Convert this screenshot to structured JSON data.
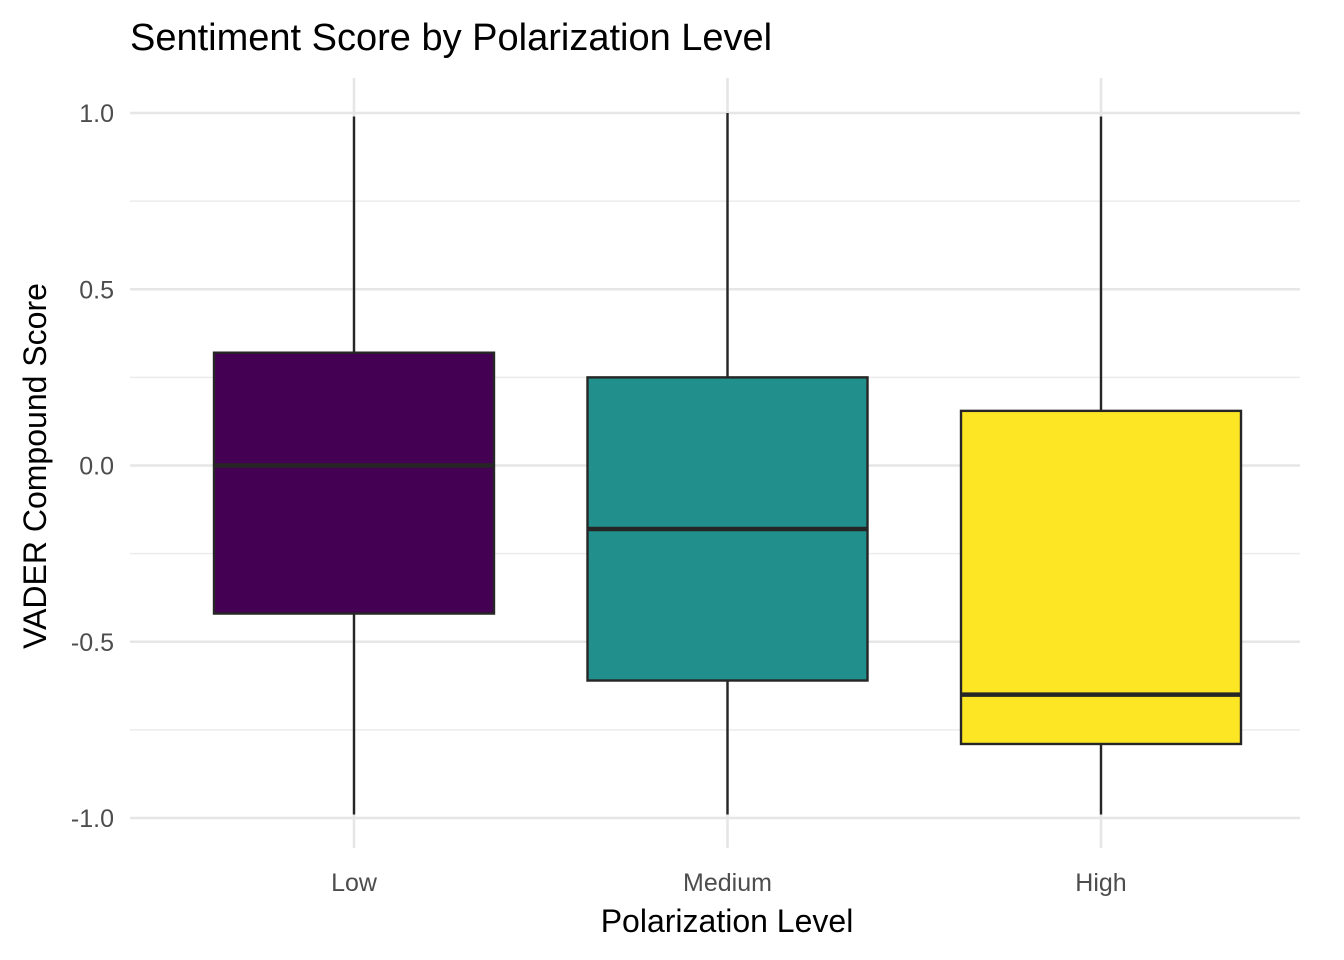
{
  "chart_data": {
    "type": "boxplot",
    "title": "Sentiment Score by Polarization Level",
    "xlabel": "Polarization Level",
    "ylabel": "VADER Compound Score",
    "ylim": [
      -1.0,
      1.0
    ],
    "yticks": [
      -1.0,
      -0.5,
      0.0,
      0.5,
      1.0
    ],
    "ytick_labels": [
      "-1.0",
      "-0.5",
      "0.0",
      "0.5",
      "1.0"
    ],
    "grid": true,
    "legend": "none",
    "categories": [
      "Low",
      "Medium",
      "High"
    ],
    "boxes": [
      {
        "category": "Low",
        "min": -0.99,
        "q1": -0.42,
        "median": 0.0,
        "q3": 0.32,
        "max": 0.99,
        "color": "#440154"
      },
      {
        "category": "Medium",
        "min": -0.99,
        "q1": -0.61,
        "median": -0.18,
        "q3": 0.25,
        "max": 1.0,
        "color": "#21908C"
      },
      {
        "category": "High",
        "min": -0.99,
        "q1": -0.79,
        "median": -0.65,
        "q3": 0.155,
        "max": 0.99,
        "color": "#FDE725"
      }
    ]
  }
}
